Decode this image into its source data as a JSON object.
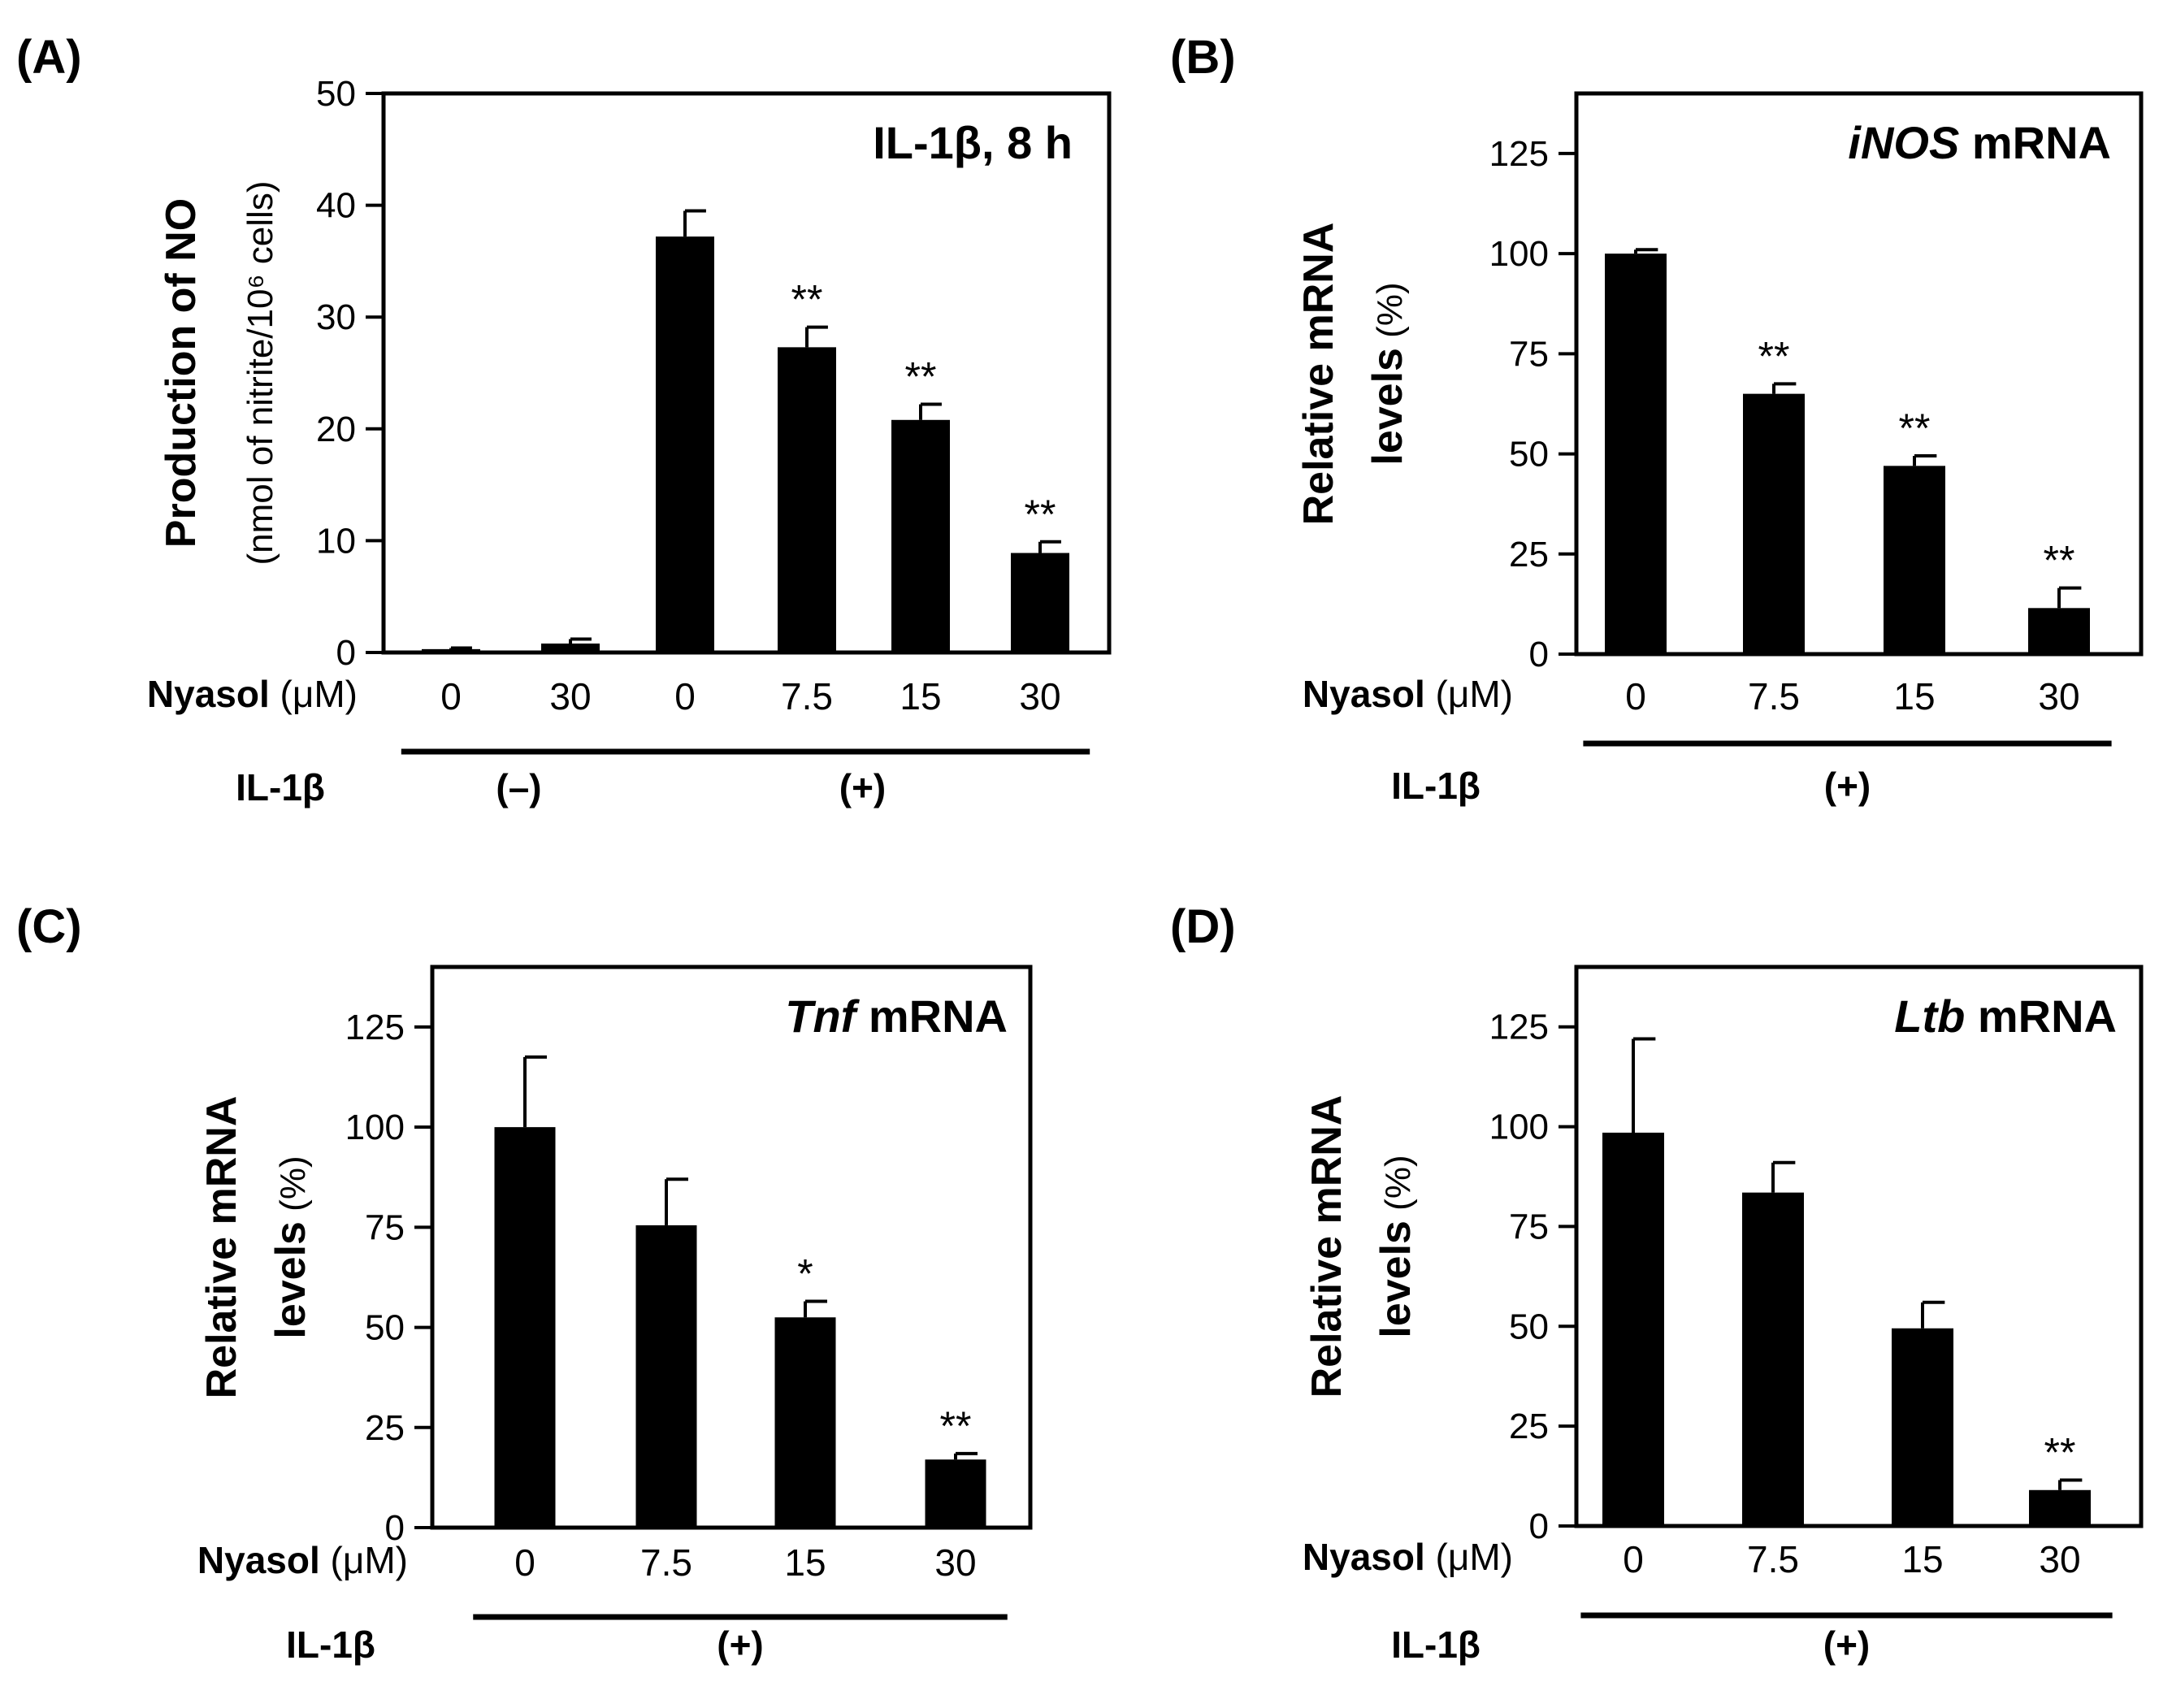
{
  "chart_data": [
    {
      "panel": "(A)",
      "type": "bar",
      "annotation": "IL-1β, 8 h",
      "ylabel_main": "Production of NO",
      "ylabel_unit": "(nmol of nitrite/10⁶ cells)",
      "ylim": [
        0,
        50
      ],
      "yticks": [
        "0",
        "10",
        "20",
        "30",
        "40",
        "50"
      ],
      "dose_label": "Nyasol",
      "dose_unit": "(μM)",
      "treatment_label": "IL-1β",
      "categories": [
        "0",
        "30",
        "0",
        "7.5",
        "15",
        "30"
      ],
      "values": [
        0.3,
        0.8,
        37.2,
        27.3,
        20.8,
        8.9
      ],
      "errors": [
        0.1,
        0.4,
        2.3,
        1.8,
        1.4,
        1.0
      ],
      "significance": [
        "",
        "",
        "",
        "**",
        "**",
        "**"
      ],
      "groups": [
        {
          "label": "(–)",
          "start": 0,
          "end": 1
        },
        {
          "label": "(+)",
          "start": 2,
          "end": 5
        }
      ]
    },
    {
      "panel": "(B)",
      "type": "bar",
      "annotation_italic": "iNOS",
      "annotation_rest": " mRNA",
      "ylabel_main_line1": "Relative mRNA",
      "ylabel_main_line2": "levels",
      "ylabel_unit": "(%)",
      "ylim": [
        0,
        140
      ],
      "yticks": [
        "0",
        "25",
        "50",
        "75",
        "100",
        "125"
      ],
      "dose_label": "Nyasol",
      "dose_unit": "(μM)",
      "treatment_label": "IL-1β",
      "categories": [
        "0",
        "7.5",
        "15",
        "30"
      ],
      "values": [
        100,
        65,
        47,
        11.5
      ],
      "errors": [
        1,
        2.5,
        2.5,
        5
      ],
      "significance": [
        "",
        "**",
        "**",
        "**"
      ],
      "groups": [
        {
          "label": "(+)",
          "start": 0,
          "end": 3
        }
      ]
    },
    {
      "panel": "(C)",
      "type": "bar",
      "annotation_italic": "Tnf",
      "annotation_rest": " mRNA",
      "ylabel_main_line1": "Relative mRNA",
      "ylabel_main_line2": "levels",
      "ylabel_unit": "(%)",
      "ylim": [
        0,
        140
      ],
      "yticks": [
        "0",
        "25",
        "50",
        "75",
        "100",
        "125"
      ],
      "dose_label": "Nyasol",
      "dose_unit": "(μM)",
      "treatment_label": "IL-1β",
      "categories": [
        "0",
        "7.5",
        "15",
        "30"
      ],
      "values": [
        100,
        75.5,
        52.5,
        17
      ],
      "errors": [
        17.5,
        11.5,
        4,
        1.5
      ],
      "significance": [
        "",
        "",
        "*",
        "**"
      ],
      "groups": [
        {
          "label": "(+)",
          "start": 0,
          "end": 3
        }
      ]
    },
    {
      "panel": "(D)",
      "type": "bar",
      "annotation_italic": "Ltb",
      "annotation_rest": " mRNA",
      "ylabel_main_line1": "Relative mRNA",
      "ylabel_main_line2": "levels",
      "ylabel_unit": "(%)",
      "ylim": [
        0,
        140
      ],
      "yticks": [
        "0",
        "25",
        "50",
        "75",
        "100",
        "125"
      ],
      "dose_label": "Nyasol",
      "dose_unit": "(μM)",
      "treatment_label": "IL-1β",
      "categories": [
        "0",
        "7.5",
        "15",
        "30"
      ],
      "values": [
        98.5,
        83.5,
        49.5,
        9
      ],
      "errors": [
        23.5,
        7.5,
        6.5,
        2.5
      ],
      "significance": [
        "",
        "",
        "",
        "**"
      ],
      "groups": [
        {
          "label": "(+)",
          "start": 0,
          "end": 3
        }
      ]
    }
  ]
}
